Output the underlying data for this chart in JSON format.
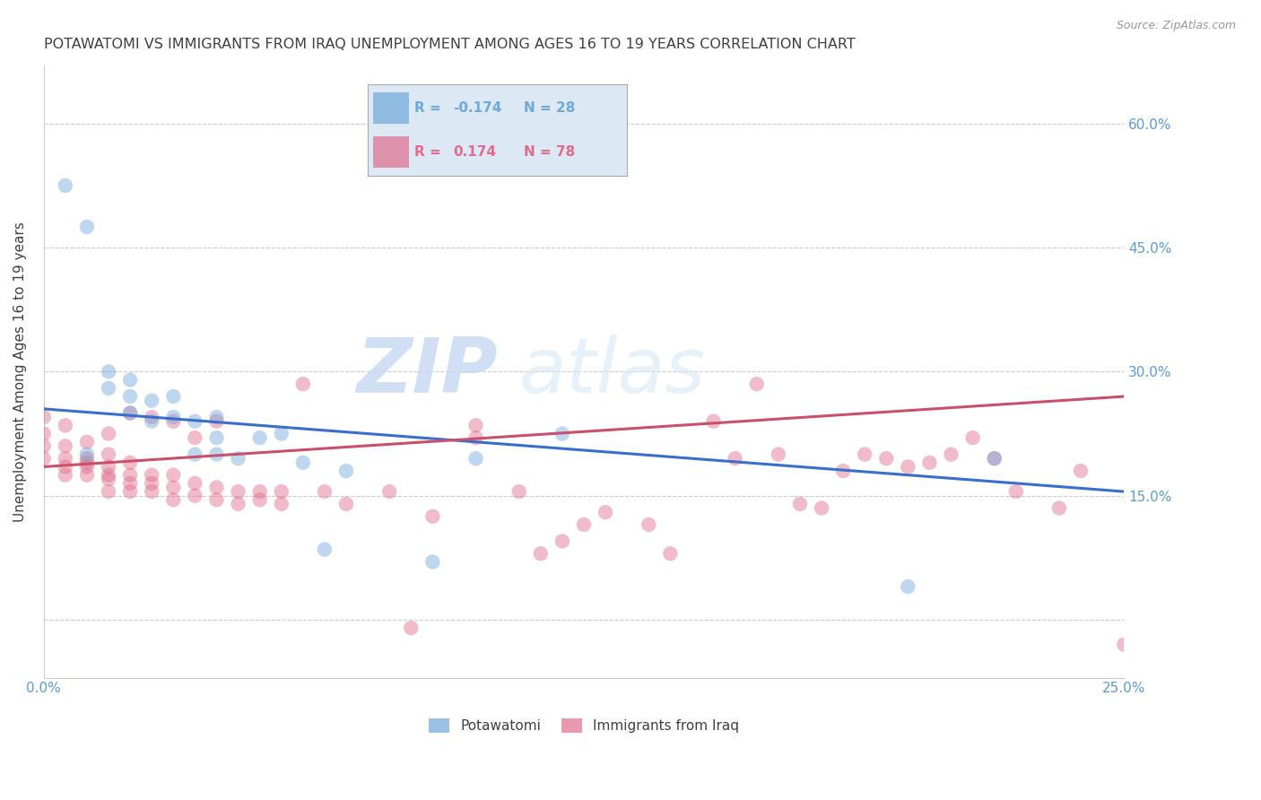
{
  "title": "POTAWATOMI VS IMMIGRANTS FROM IRAQ UNEMPLOYMENT AMONG AGES 16 TO 19 YEARS CORRELATION CHART",
  "source": "Source: ZipAtlas.com",
  "ylabel": "Unemployment Among Ages 16 to 19 years",
  "xlim": [
    0.0,
    0.25
  ],
  "ylim": [
    -0.07,
    0.67
  ],
  "yticks": [
    0.0,
    0.15,
    0.3,
    0.45,
    0.6
  ],
  "ytick_labels": [
    "",
    "15.0%",
    "30.0%",
    "45.0%",
    "60.0%"
  ],
  "xticks": [
    0.0,
    0.05,
    0.1,
    0.15,
    0.2,
    0.25
  ],
  "xtick_labels": [
    "0.0%",
    "",
    "",
    "",
    "",
    "25.0%"
  ],
  "series1_name": "Potawatomi",
  "series1_color": "#6fa8dc",
  "series1_R": -0.174,
  "series1_N": 28,
  "series1_x": [
    0.005,
    0.01,
    0.01,
    0.015,
    0.015,
    0.02,
    0.02,
    0.02,
    0.025,
    0.025,
    0.03,
    0.03,
    0.035,
    0.035,
    0.04,
    0.04,
    0.04,
    0.045,
    0.05,
    0.055,
    0.06,
    0.065,
    0.07,
    0.09,
    0.1,
    0.12,
    0.2,
    0.22
  ],
  "series1_y": [
    0.525,
    0.2,
    0.475,
    0.28,
    0.3,
    0.25,
    0.27,
    0.29,
    0.24,
    0.265,
    0.245,
    0.27,
    0.2,
    0.24,
    0.2,
    0.22,
    0.245,
    0.195,
    0.22,
    0.225,
    0.19,
    0.085,
    0.18,
    0.07,
    0.195,
    0.225,
    0.04,
    0.195
  ],
  "series1_trend_x": [
    0.0,
    0.25
  ],
  "series1_trend_y": [
    0.255,
    0.155
  ],
  "series2_name": "Immigrants from Iraq",
  "series2_color": "#e06c8a",
  "series2_R": 0.174,
  "series2_N": 78,
  "series2_x": [
    0.0,
    0.0,
    0.0,
    0.0,
    0.005,
    0.005,
    0.005,
    0.005,
    0.005,
    0.01,
    0.01,
    0.01,
    0.01,
    0.01,
    0.015,
    0.015,
    0.015,
    0.015,
    0.015,
    0.015,
    0.02,
    0.02,
    0.02,
    0.02,
    0.02,
    0.025,
    0.025,
    0.025,
    0.025,
    0.03,
    0.03,
    0.03,
    0.03,
    0.035,
    0.035,
    0.035,
    0.04,
    0.04,
    0.04,
    0.045,
    0.045,
    0.05,
    0.05,
    0.055,
    0.055,
    0.06,
    0.065,
    0.07,
    0.08,
    0.085,
    0.09,
    0.1,
    0.1,
    0.11,
    0.115,
    0.12,
    0.125,
    0.13,
    0.14,
    0.145,
    0.155,
    0.16,
    0.165,
    0.17,
    0.175,
    0.18,
    0.185,
    0.19,
    0.195,
    0.2,
    0.205,
    0.21,
    0.215,
    0.22,
    0.225,
    0.235,
    0.24,
    0.25
  ],
  "series2_y": [
    0.195,
    0.21,
    0.225,
    0.245,
    0.175,
    0.185,
    0.195,
    0.21,
    0.235,
    0.175,
    0.185,
    0.19,
    0.195,
    0.215,
    0.155,
    0.17,
    0.175,
    0.185,
    0.2,
    0.225,
    0.155,
    0.165,
    0.175,
    0.19,
    0.25,
    0.155,
    0.165,
    0.175,
    0.245,
    0.145,
    0.16,
    0.175,
    0.24,
    0.15,
    0.165,
    0.22,
    0.145,
    0.16,
    0.24,
    0.14,
    0.155,
    0.145,
    0.155,
    0.14,
    0.155,
    0.285,
    0.155,
    0.14,
    0.155,
    -0.01,
    0.125,
    0.22,
    0.235,
    0.155,
    0.08,
    0.095,
    0.115,
    0.13,
    0.115,
    0.08,
    0.24,
    0.195,
    0.285,
    0.2,
    0.14,
    0.135,
    0.18,
    0.2,
    0.195,
    0.185,
    0.19,
    0.2,
    0.22,
    0.195,
    0.155,
    0.135,
    0.18,
    -0.03
  ],
  "series2_trend_x": [
    0.0,
    0.25
  ],
  "series2_trend_y": [
    0.185,
    0.27
  ],
  "watermark_zip": "ZIP",
  "watermark_atlas": "atlas",
  "legend_box_color": "#dce9f5",
  "grid_color": "#cccccc",
  "axis_color": "#5b9bd5",
  "title_color": "#404040",
  "background_color": "#ffffff",
  "marker_size": 140,
  "marker_alpha": 0.45,
  "line_width": 2.2
}
